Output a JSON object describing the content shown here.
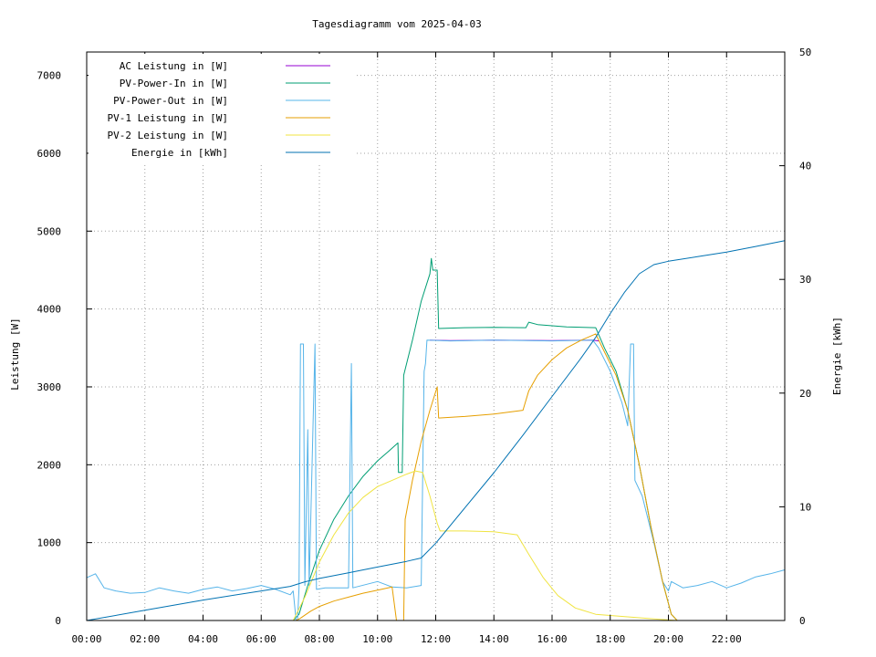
{
  "chart_data": {
    "type": "line",
    "title": "Tagesdiagramm vom 2025-04-03",
    "ylabel": "Leistung [W]",
    "y2label": "Energie [kWh]",
    "x_unit": "hours",
    "xlim": [
      0,
      24
    ],
    "ylim": [
      0,
      7300
    ],
    "y2lim": [
      0,
      50
    ],
    "grid": true,
    "legend_position": "top-left",
    "x_ticks": [
      {
        "v": 0,
        "label": "00:00"
      },
      {
        "v": 2,
        "label": "02:00"
      },
      {
        "v": 4,
        "label": "04:00"
      },
      {
        "v": 6,
        "label": "06:00"
      },
      {
        "v": 8,
        "label": "08:00"
      },
      {
        "v": 10,
        "label": "10:00"
      },
      {
        "v": 12,
        "label": "12:00"
      },
      {
        "v": 14,
        "label": "14:00"
      },
      {
        "v": 16,
        "label": "16:00"
      },
      {
        "v": 18,
        "label": "18:00"
      },
      {
        "v": 20,
        "label": "20:00"
      },
      {
        "v": 22,
        "label": "22:00"
      }
    ],
    "y_ticks": [
      0,
      1000,
      2000,
      3000,
      4000,
      5000,
      6000,
      7000
    ],
    "y2_ticks": [
      0,
      10,
      20,
      30,
      40,
      50
    ],
    "series": [
      {
        "name": "AC Leistung in [W]",
        "color": "#9400d3",
        "axis": "left",
        "points": [
          [
            11.8,
            3600
          ],
          [
            12.5,
            3595
          ],
          [
            14,
            3600
          ],
          [
            16,
            3595
          ],
          [
            17.4,
            3600
          ],
          [
            17.6,
            3590
          ]
        ]
      },
      {
        "name": "PV-Power-In in [W]",
        "color": "#009e73",
        "axis": "left",
        "points": [
          [
            0,
            0
          ],
          [
            7.1,
            0
          ],
          [
            7.3,
            80
          ],
          [
            7.6,
            450
          ],
          [
            8.0,
            900
          ],
          [
            8.5,
            1300
          ],
          [
            9.0,
            1600
          ],
          [
            9.5,
            1850
          ],
          [
            10.0,
            2050
          ],
          [
            10.4,
            2180
          ],
          [
            10.7,
            2280
          ],
          [
            10.72,
            1900
          ],
          [
            10.85,
            1900
          ],
          [
            10.9,
            3150
          ],
          [
            11.2,
            3600
          ],
          [
            11.5,
            4100
          ],
          [
            11.8,
            4450
          ],
          [
            11.85,
            4650
          ],
          [
            11.9,
            4500
          ],
          [
            12.05,
            4500
          ],
          [
            12.1,
            3750
          ],
          [
            13,
            3760
          ],
          [
            14,
            3765
          ],
          [
            15.1,
            3760
          ],
          [
            15.2,
            3830
          ],
          [
            15.5,
            3800
          ],
          [
            16.5,
            3770
          ],
          [
            17.5,
            3760
          ],
          [
            17.8,
            3500
          ],
          [
            18.2,
            3200
          ],
          [
            18.6,
            2700
          ],
          [
            19.0,
            2000
          ],
          [
            19.4,
            1200
          ],
          [
            19.8,
            500
          ],
          [
            20.1,
            80
          ],
          [
            20.3,
            0
          ],
          [
            24,
            0
          ]
        ]
      },
      {
        "name": "PV-Power-Out in [W]",
        "color": "#56b4e9",
        "axis": "left",
        "points": [
          [
            0,
            550
          ],
          [
            0.3,
            600
          ],
          [
            0.6,
            420
          ],
          [
            1,
            380
          ],
          [
            1.5,
            350
          ],
          [
            2,
            360
          ],
          [
            2.5,
            420
          ],
          [
            3,
            380
          ],
          [
            3.5,
            350
          ],
          [
            4,
            400
          ],
          [
            4.5,
            430
          ],
          [
            5,
            380
          ],
          [
            5.5,
            410
          ],
          [
            6,
            450
          ],
          [
            6.5,
            400
          ],
          [
            7.0,
            330
          ],
          [
            7.1,
            380
          ],
          [
            7.2,
            0
          ],
          [
            7.25,
            0
          ],
          [
            7.3,
            420
          ],
          [
            7.35,
            3550
          ],
          [
            7.45,
            3550
          ],
          [
            7.5,
            450
          ],
          [
            7.6,
            2450
          ],
          [
            7.65,
            450
          ],
          [
            7.85,
            3550
          ],
          [
            7.9,
            400
          ],
          [
            8.2,
            420
          ],
          [
            9.0,
            420
          ],
          [
            9.1,
            3300
          ],
          [
            9.15,
            420
          ],
          [
            10.0,
            500
          ],
          [
            10.5,
            430
          ],
          [
            11.0,
            420
          ],
          [
            11.5,
            450
          ],
          [
            11.6,
            3200
          ],
          [
            11.65,
            3300
          ],
          [
            11.7,
            3600
          ],
          [
            12.5,
            3590
          ],
          [
            14,
            3600
          ],
          [
            16,
            3590
          ],
          [
            17.4,
            3600
          ],
          [
            17.6,
            3500
          ],
          [
            18.0,
            3200
          ],
          [
            18.4,
            2800
          ],
          [
            18.6,
            2500
          ],
          [
            18.7,
            3550
          ],
          [
            18.8,
            3550
          ],
          [
            18.85,
            1800
          ],
          [
            19.1,
            1600
          ],
          [
            19.5,
            1000
          ],
          [
            19.8,
            500
          ],
          [
            20.0,
            380
          ],
          [
            20.1,
            500
          ],
          [
            20.5,
            420
          ],
          [
            21,
            450
          ],
          [
            21.5,
            500
          ],
          [
            22,
            420
          ],
          [
            22.5,
            480
          ],
          [
            23,
            560
          ],
          [
            23.5,
            600
          ],
          [
            24,
            650
          ]
        ]
      },
      {
        "name": "PV-1 Leistung in [W]",
        "color": "#e69f00",
        "axis": "left",
        "points": [
          [
            0,
            0
          ],
          [
            7.2,
            0
          ],
          [
            7.35,
            30
          ],
          [
            7.7,
            120
          ],
          [
            8.0,
            180
          ],
          [
            8.5,
            250
          ],
          [
            9.0,
            300
          ],
          [
            9.5,
            350
          ],
          [
            10.0,
            390
          ],
          [
            10.5,
            430
          ],
          [
            10.65,
            0
          ],
          [
            10.9,
            0
          ],
          [
            10.95,
            1300
          ],
          [
            11.2,
            1800
          ],
          [
            11.5,
            2300
          ],
          [
            11.8,
            2700
          ],
          [
            12.05,
            3000
          ],
          [
            12.1,
            2600
          ],
          [
            13,
            2620
          ],
          [
            14,
            2650
          ],
          [
            15,
            2700
          ],
          [
            15.2,
            2950
          ],
          [
            15.5,
            3150
          ],
          [
            16,
            3350
          ],
          [
            16.5,
            3500
          ],
          [
            17,
            3600
          ],
          [
            17.5,
            3680
          ],
          [
            17.8,
            3450
          ],
          [
            18.2,
            3150
          ],
          [
            18.6,
            2700
          ],
          [
            19.0,
            2000
          ],
          [
            19.4,
            1200
          ],
          [
            19.8,
            500
          ],
          [
            20.1,
            80
          ],
          [
            20.3,
            0
          ],
          [
            24,
            0
          ]
        ]
      },
      {
        "name": "PV-2 Leistung in [W]",
        "color": "#f0e442",
        "axis": "left",
        "points": [
          [
            0,
            0
          ],
          [
            7.1,
            0
          ],
          [
            7.5,
            300
          ],
          [
            8.0,
            750
          ],
          [
            8.5,
            1100
          ],
          [
            9.0,
            1380
          ],
          [
            9.5,
            1580
          ],
          [
            10.0,
            1720
          ],
          [
            10.5,
            1800
          ],
          [
            11.0,
            1880
          ],
          [
            11.3,
            1920
          ],
          [
            11.55,
            1900
          ],
          [
            11.8,
            1600
          ],
          [
            12.05,
            1250
          ],
          [
            12.15,
            1150
          ],
          [
            13,
            1150
          ],
          [
            14,
            1140
          ],
          [
            14.8,
            1100
          ],
          [
            15.2,
            850
          ],
          [
            15.7,
            550
          ],
          [
            16.2,
            320
          ],
          [
            16.8,
            160
          ],
          [
            17.5,
            80
          ],
          [
            18.5,
            50
          ],
          [
            19.5,
            20
          ],
          [
            20.3,
            0
          ],
          [
            24,
            0
          ]
        ]
      },
      {
        "name": "Energie in [kWh]",
        "color": "#0072b2",
        "axis": "right",
        "points": [
          [
            0,
            0
          ],
          [
            2,
            0.9
          ],
          [
            4,
            1.8
          ],
          [
            6,
            2.6
          ],
          [
            7.0,
            3.0
          ],
          [
            7.5,
            3.4
          ],
          [
            8.0,
            3.7
          ],
          [
            9.0,
            4.2
          ],
          [
            10.0,
            4.7
          ],
          [
            11.0,
            5.2
          ],
          [
            11.5,
            5.5
          ],
          [
            12.0,
            6.8
          ],
          [
            13.0,
            9.9
          ],
          [
            14.0,
            13.0
          ],
          [
            15.0,
            16.3
          ],
          [
            16.0,
            19.7
          ],
          [
            17.0,
            23.1
          ],
          [
            17.5,
            24.9
          ],
          [
            18.0,
            27.0
          ],
          [
            18.5,
            28.9
          ],
          [
            19.0,
            30.5
          ],
          [
            19.5,
            31.3
          ],
          [
            20.0,
            31.6
          ],
          [
            21.0,
            32.0
          ],
          [
            22.0,
            32.4
          ],
          [
            23.0,
            32.9
          ],
          [
            24.0,
            33.4
          ]
        ]
      }
    ]
  }
}
